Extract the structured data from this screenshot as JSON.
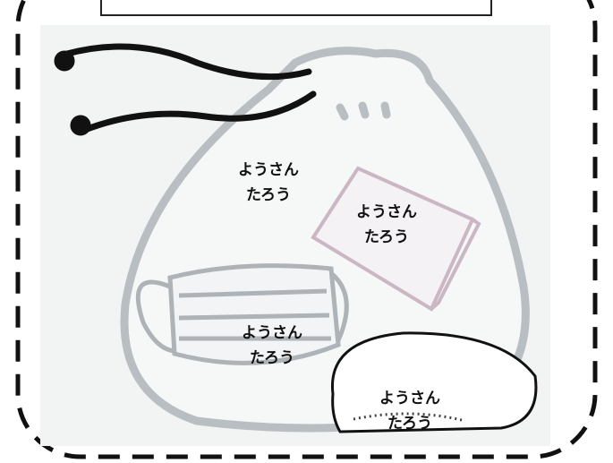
{
  "labels": [
    {
      "lines": [
        "ようさん",
        "たろう"
      ]
    },
    {
      "lines": [
        "ようさん",
        "たろう"
      ]
    },
    {
      "lines": [
        "ようさん",
        "たろう"
      ]
    },
    {
      "lines": [
        "ようさん",
        "たろう"
      ]
    }
  ]
}
